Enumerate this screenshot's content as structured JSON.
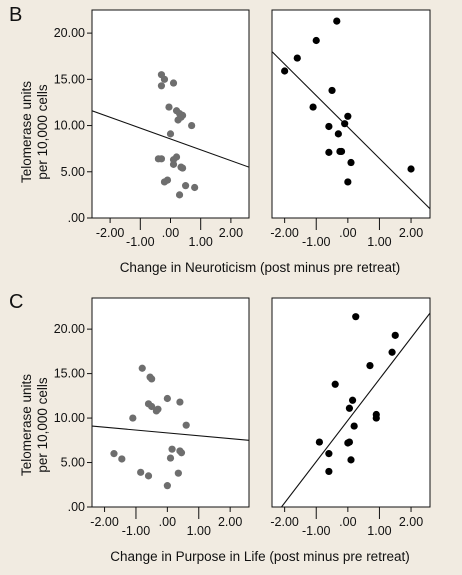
{
  "panel_B": {
    "letter": "B",
    "ylabel_line1": "Telomerase units",
    "ylabel_line2": "per 10,000 cells",
    "xlabel": "Change in Neuroticism (post minus pre retreat)"
  },
  "panel_C": {
    "letter": "C",
    "ylabel_line1": "Telomerase units",
    "ylabel_line2": "per 10,000 cells",
    "xlabel": "Change in Purpose in Life (post minus pre retreat)"
  },
  "colors": {
    "grey_points": "#6e6e6e",
    "black_points": "#000000",
    "background": "#f1ebe1",
    "plot_bg": "#ffffff"
  },
  "chart_data": [
    {
      "id": "B-left",
      "type": "scatter",
      "title": "",
      "xlim": [
        -2.6,
        2.6
      ],
      "ylim": [
        0,
        22.5
      ],
      "x_ticks": [
        "-2.00",
        "-1.00",
        ".00",
        "1.00",
        "2.00"
      ],
      "x_tick_values": [
        -2,
        -1,
        0,
        1,
        2
      ],
      "y_ticks": [
        "20.00",
        "15.00",
        "10.00",
        "5.00",
        ".00"
      ],
      "y_tick_values": [
        20,
        15,
        10,
        5,
        0
      ],
      "regression": [
        [
          -2.6,
          11.6
        ],
        [
          2.6,
          5.5
        ]
      ],
      "point_color": "#6e6e6e",
      "x": [
        -0.3,
        -0.2,
        -0.3,
        0.1,
        -0.05,
        0.2,
        0.3,
        0.35,
        0.25,
        0.4,
        0.7,
        0.0,
        0.2,
        0.1,
        -0.4,
        -0.3,
        0.1,
        0.35,
        0.4,
        0.5,
        -0.2,
        -0.1,
        0.8,
        0.3
      ],
      "y": [
        15.5,
        15.0,
        14.3,
        14.6,
        12.0,
        11.6,
        11.3,
        10.9,
        10.6,
        11.1,
        10.0,
        9.1,
        6.6,
        6.3,
        6.4,
        6.4,
        5.8,
        5.5,
        5.4,
        3.5,
        3.9,
        4.1,
        3.3,
        2.5
      ]
    },
    {
      "id": "B-right",
      "type": "scatter",
      "title": "",
      "xlim": [
        -2.4,
        2.6
      ],
      "ylim": [
        0,
        22.5
      ],
      "x_ticks": [
        "-2.00",
        "-1.00",
        ".00",
        "1.00",
        "2.00"
      ],
      "x_tick_values": [
        -2,
        -1,
        0,
        1,
        2
      ],
      "y_ticks": [],
      "y_tick_values": [],
      "regression": [
        [
          -2.4,
          18.0
        ],
        [
          2.6,
          1.0
        ]
      ],
      "point_color": "#000000",
      "x": [
        -0.35,
        -1.0,
        -1.6,
        -2.0,
        -0.5,
        -1.1,
        0.0,
        -0.1,
        -0.6,
        -0.3,
        -0.2,
        0.1,
        -0.6,
        -0.25,
        2.0,
        0.0
      ],
      "y": [
        21.3,
        19.2,
        17.3,
        15.9,
        13.8,
        12.0,
        11.0,
        10.2,
        9.9,
        9.1,
        7.2,
        6.0,
        7.1,
        7.2,
        5.3,
        3.9
      ]
    },
    {
      "id": "C-left",
      "type": "scatter",
      "title": "",
      "xlim": [
        -2.4,
        2.6
      ],
      "ylim": [
        0,
        23.5
      ],
      "x_ticks": [
        "-2.00",
        "-1.00",
        ".00",
        "1.00",
        "2.00"
      ],
      "x_tick_values": [
        -2,
        -1,
        0,
        1,
        2
      ],
      "y_ticks": [
        "20.00",
        "15.00",
        "10.00",
        "5.00",
        ".00"
      ],
      "y_tick_values": [
        20,
        15,
        10,
        5,
        0
      ],
      "regression": [
        [
          -2.4,
          9.1
        ],
        [
          2.6,
          7.5
        ]
      ],
      "point_color": "#6e6e6e",
      "x": [
        -0.8,
        -0.55,
        -0.5,
        -0.6,
        -0.5,
        -0.35,
        -0.3,
        0.0,
        0.4,
        -1.1,
        0.6,
        -1.7,
        -1.45,
        0.15,
        0.1,
        0.4,
        0.45,
        -0.85,
        -0.6,
        0.35,
        0.0
      ],
      "y": [
        15.6,
        14.6,
        14.4,
        11.6,
        11.3,
        10.8,
        11.0,
        12.2,
        11.8,
        10.0,
        9.2,
        6.0,
        5.4,
        6.5,
        5.5,
        6.3,
        6.1,
        3.9,
        3.5,
        3.8,
        2.4
      ]
    },
    {
      "id": "C-right",
      "type": "scatter",
      "title": "",
      "xlim": [
        -2.4,
        2.6
      ],
      "ylim": [
        0,
        23.5
      ],
      "x_ticks": [
        "-2.00",
        "-1.00",
        ".00",
        "1.00",
        "2.00"
      ],
      "x_tick_values": [
        -2,
        -1,
        0,
        1,
        2
      ],
      "y_ticks": [],
      "y_tick_values": [],
      "regression": [
        [
          -2.1,
          0.0
        ],
        [
          2.6,
          21.8
        ]
      ],
      "point_color": "#000000",
      "x": [
        0.25,
        1.5,
        1.4,
        0.7,
        -0.4,
        0.15,
        0.05,
        0.9,
        0.9,
        0.2,
        -0.9,
        0.05,
        0.0,
        -0.6,
        0.1,
        -0.6
      ],
      "y": [
        21.4,
        19.3,
        17.4,
        15.9,
        13.8,
        12.0,
        11.1,
        10.4,
        10.0,
        9.1,
        7.3,
        7.3,
        7.2,
        6.0,
        5.3,
        4.0
      ]
    }
  ]
}
